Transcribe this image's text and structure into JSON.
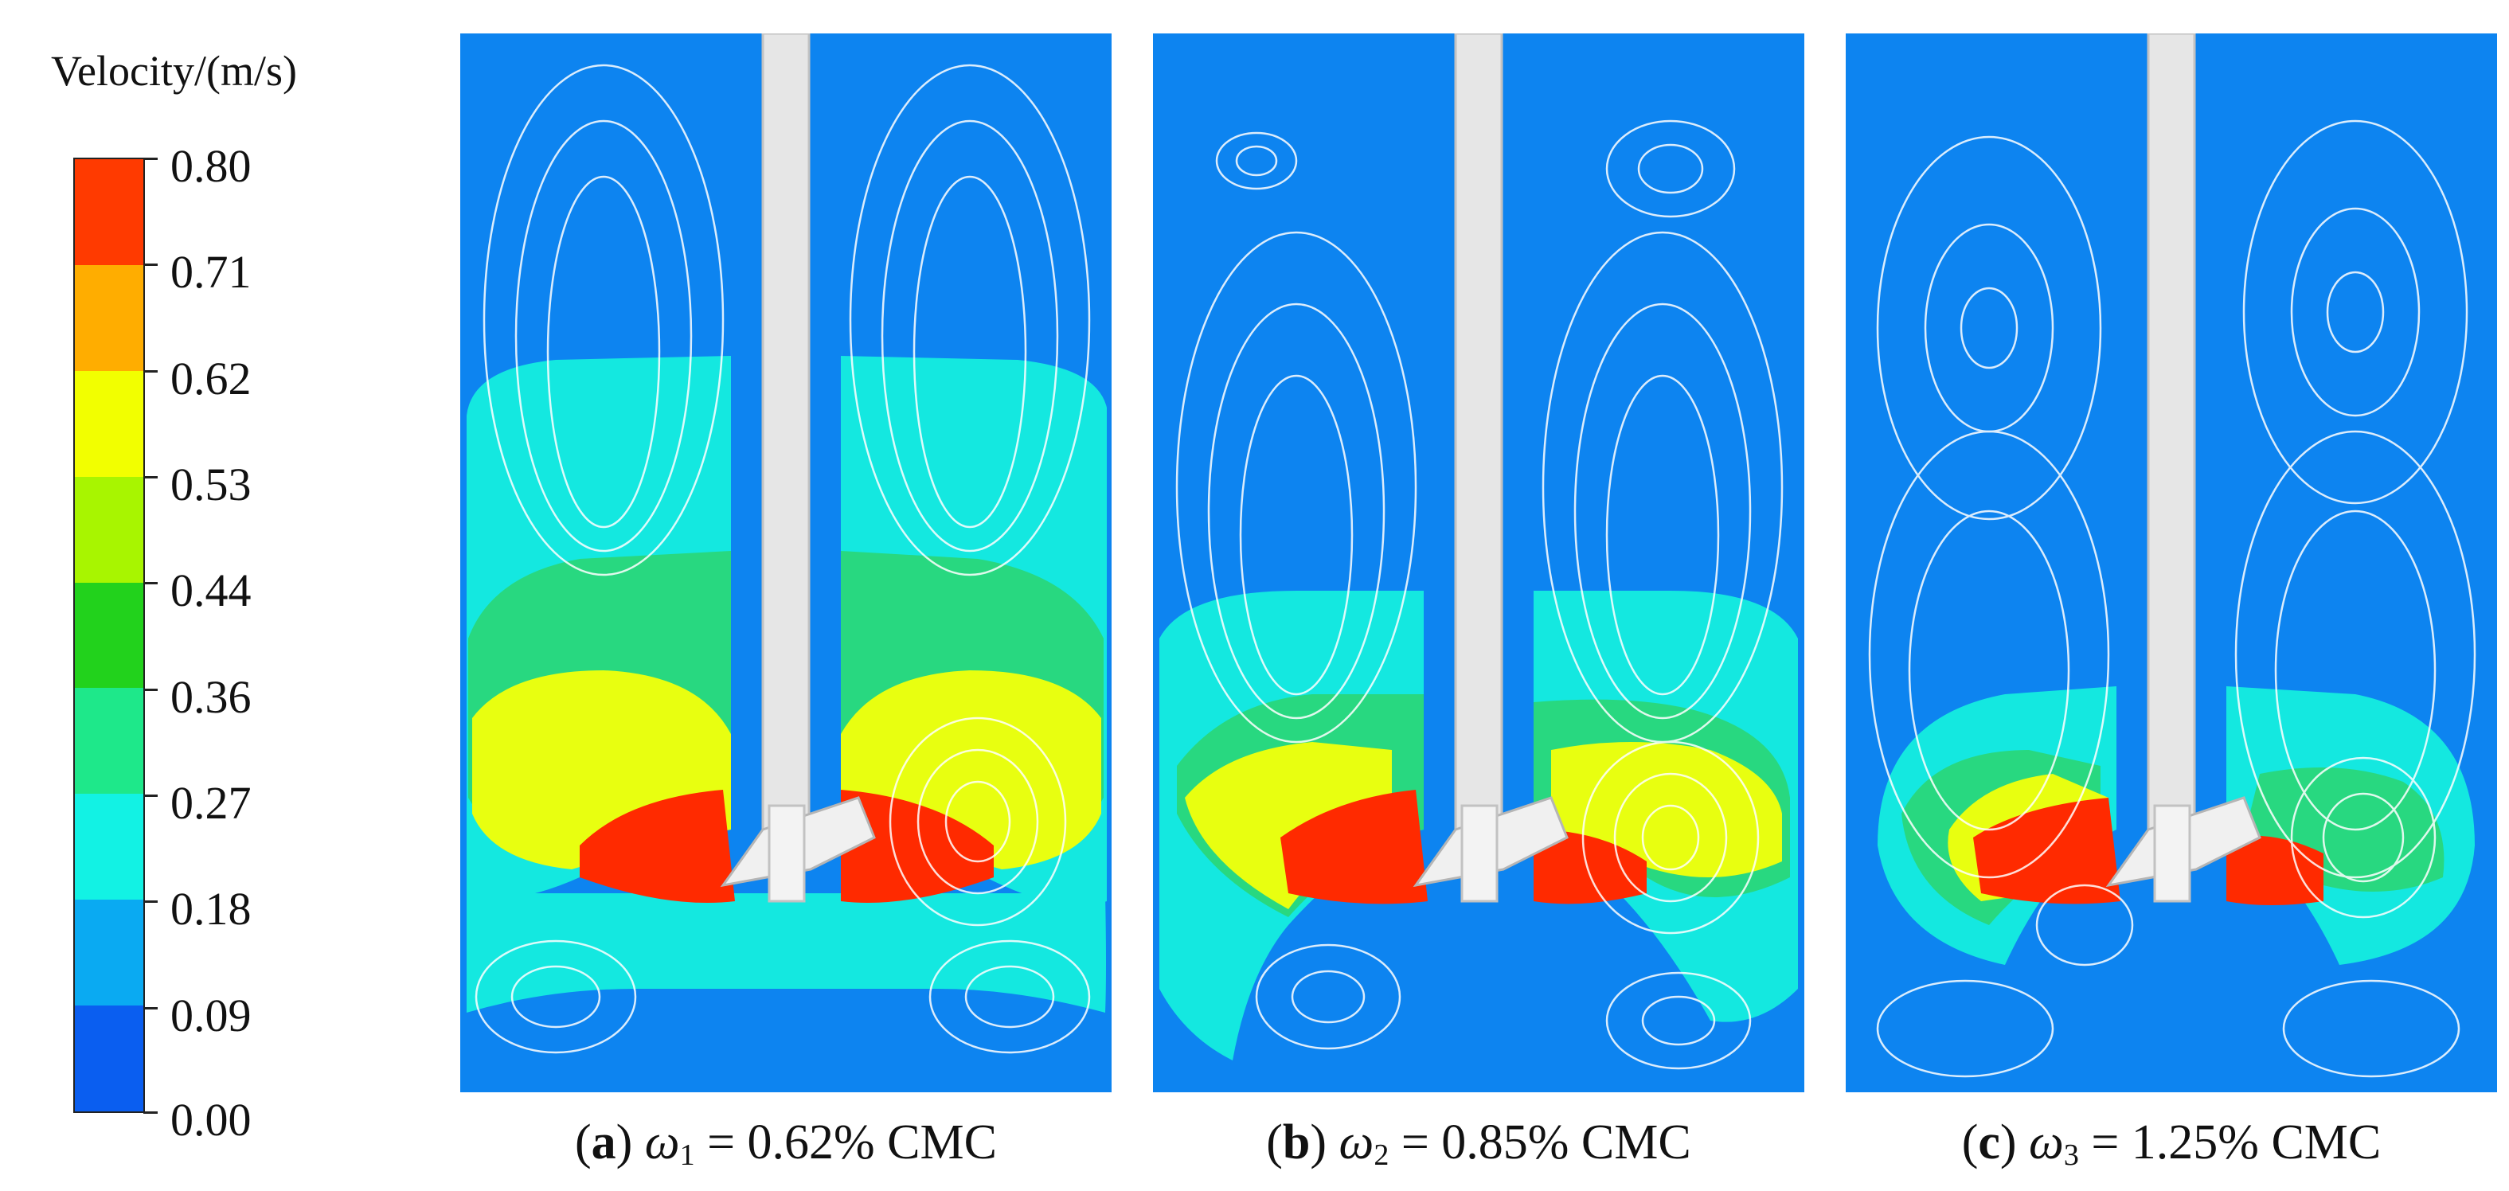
{
  "legend": {
    "title": "Velocity/(m/s)",
    "ticks": [
      "0.80",
      "0.71",
      "0.62",
      "0.53",
      "0.44",
      "0.36",
      "0.27",
      "0.18",
      "0.09",
      "0.00"
    ],
    "colors": [
      "#ff3a00",
      "#ffad00",
      "#f2ff00",
      "#a8f500",
      "#22d21c",
      "#1ee88a",
      "#12f2e4",
      "#0aaaf2",
      "#0a5ef0"
    ]
  },
  "panels": [
    {
      "letter": "a",
      "symbol": "ω",
      "subscript": "1",
      "value": " = 0.62% CMC"
    },
    {
      "letter": "b",
      "symbol": "ω",
      "subscript": "2",
      "value": " = 0.85% CMC"
    },
    {
      "letter": "c",
      "symbol": "ω",
      "subscript": "3",
      "value": " = 1.25% CMC"
    }
  ]
}
